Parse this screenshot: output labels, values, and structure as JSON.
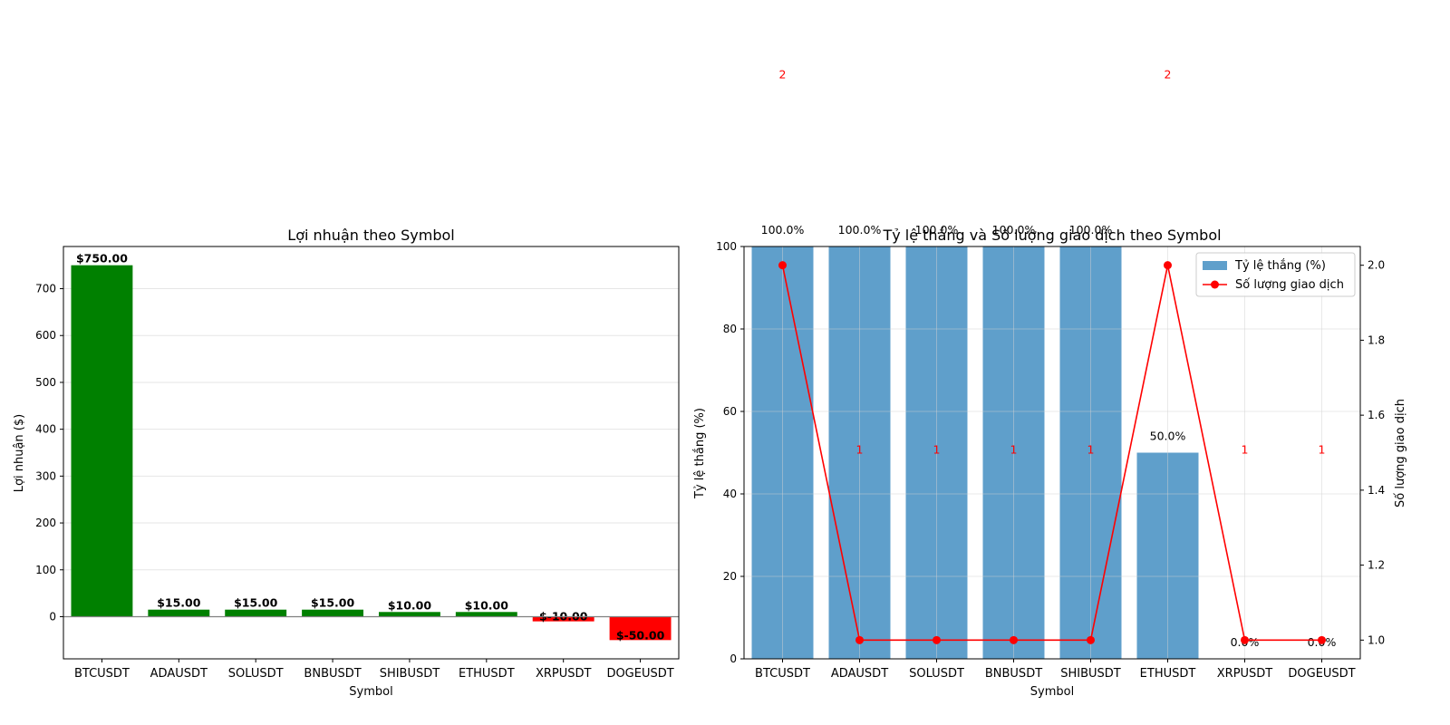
{
  "chart_data": [
    {
      "type": "bar",
      "title": "Lợi nhuận theo Symbol",
      "xlabel": "Symbol",
      "ylabel": "Lợi nhuận ($)",
      "categories": [
        "BTCUSDT",
        "ADAUSDT",
        "SOLUSDT",
        "BNBUSDT",
        "SHIBUSDT",
        "ETHUSDT",
        "XRPUSDT",
        "DOGEUSDT"
      ],
      "values": [
        750,
        15,
        15,
        15,
        10,
        10,
        -10,
        -50
      ],
      "value_labels": [
        "$750.00",
        "$15.00",
        "$15.00",
        "$15.00",
        "$10.00",
        "$10.00",
        "$-10.00",
        "$-50.00"
      ],
      "ylim": [
        -90,
        790
      ],
      "yticks": [
        0,
        100,
        200,
        300,
        400,
        500,
        600,
        700
      ],
      "grid": "y",
      "colors": {
        "positive": "#008000",
        "negative": "#ff0000"
      }
    },
    {
      "type": "bar+line",
      "title": "Tỷ lệ thắng và Số lượng giao dịch theo Symbol",
      "xlabel": "Symbol",
      "ylabel": "Tỷ lệ thắng (%)",
      "y2label": "Số lượng giao dịch",
      "categories": [
        "BTCUSDT",
        "ADAUSDT",
        "SOLUSDT",
        "BNBUSDT",
        "SHIBUSDT",
        "ETHUSDT",
        "XRPUSDT",
        "DOGEUSDT"
      ],
      "series": [
        {
          "name": "Tỷ lệ thắng (%)",
          "type": "bar",
          "axis": "left",
          "values": [
            100,
            100,
            100,
            100,
            100,
            50,
            0,
            0
          ],
          "labels": [
            "100.0%",
            "100.0%",
            "100.0%",
            "100.0%",
            "100.0%",
            "50.0%",
            "0.0%",
            "0.0%"
          ],
          "color": "#5f9fcb"
        },
        {
          "name": "Số lượng giao dịch",
          "type": "line",
          "axis": "right",
          "values": [
            2,
            1,
            1,
            1,
            1,
            2,
            1,
            1
          ],
          "labels": [
            "2",
            "1",
            "1",
            "1",
            "1",
            "2",
            "1",
            "1"
          ],
          "color": "#ff0000"
        }
      ],
      "ylim": [
        0,
        100
      ],
      "yticks": [
        0,
        20,
        40,
        60,
        80,
        100
      ],
      "y2lim": [
        0.95,
        2.05
      ],
      "y2ticks": [
        "1.0",
        "1.2",
        "1.4",
        "1.6",
        "1.8",
        "2.0"
      ],
      "grid": "both",
      "legend": "top-right"
    }
  ]
}
